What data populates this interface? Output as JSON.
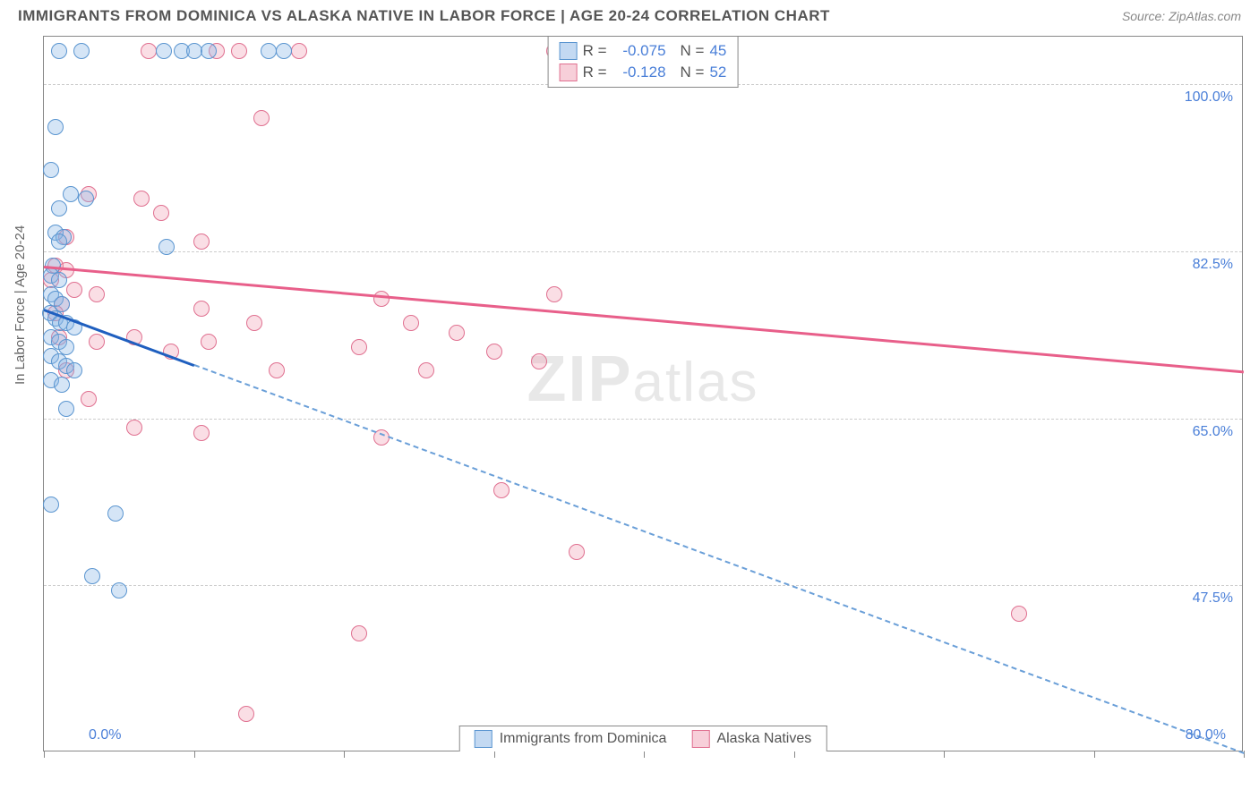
{
  "title": "IMMIGRANTS FROM DOMINICA VS ALASKA NATIVE IN LABOR FORCE | AGE 20-24 CORRELATION CHART",
  "source": "Source: ZipAtlas.com",
  "ylabel": "In Labor Force | Age 20-24",
  "watermark_zip": "ZIP",
  "watermark_atlas": "atlas",
  "chart": {
    "type": "scatter",
    "background_color": "#ffffff",
    "grid_color": "#cccccc",
    "border_color": "#888888",
    "xlim": [
      0,
      80
    ],
    "ylim": [
      30,
      105
    ],
    "xtick_positions": [
      0,
      10,
      20,
      30,
      40,
      50,
      60,
      70,
      80
    ],
    "xtick_labels_shown": {
      "0": "0.0%",
      "80": "80.0%"
    },
    "ytick_positions": [
      47.5,
      65.0,
      82.5,
      100.0
    ],
    "ytick_labels": [
      "47.5%",
      "65.0%",
      "82.5%",
      "100.0%"
    ],
    "label_fontsize": 15,
    "tick_label_color": "#4a7fd8",
    "tick_label_fontsize": 16,
    "marker_radius": 9,
    "series": {
      "blue": {
        "label": "Immigrants from Dominica",
        "fill_color": "rgba(135,180,230,0.35)",
        "stroke_color": "#5a95d0",
        "R": "-0.075",
        "N": "45",
        "regression": {
          "x1": 0,
          "y1": 76.5,
          "x2": 80,
          "y2": 30.0,
          "solid_until_x": 10,
          "solid_color": "#1f5fbf",
          "dash_color": "#6a9fd8",
          "line_width": 3
        },
        "points": [
          [
            1.0,
            103.5
          ],
          [
            2.5,
            103.5
          ],
          [
            8.0,
            103.5
          ],
          [
            9.2,
            103.5
          ],
          [
            10.0,
            103.5
          ],
          [
            11.0,
            103.5
          ],
          [
            15.0,
            103.5
          ],
          [
            16.0,
            103.5
          ],
          [
            0.8,
            95.5
          ],
          [
            0.5,
            91.0
          ],
          [
            1.8,
            88.5
          ],
          [
            2.8,
            88.0
          ],
          [
            1.0,
            87.0
          ],
          [
            0.8,
            84.5
          ],
          [
            1.3,
            84.0
          ],
          [
            1.0,
            83.5
          ],
          [
            8.2,
            83.0
          ],
          [
            0.6,
            81.0
          ],
          [
            0.5,
            80.0
          ],
          [
            1.0,
            79.5
          ],
          [
            0.5,
            78.0
          ],
          [
            0.8,
            77.5
          ],
          [
            1.2,
            77.0
          ],
          [
            0.4,
            76.0
          ],
          [
            0.8,
            75.5
          ],
          [
            1.1,
            75.0
          ],
          [
            1.5,
            75.0
          ],
          [
            2.0,
            74.5
          ],
          [
            0.5,
            73.5
          ],
          [
            1.0,
            73.0
          ],
          [
            1.5,
            72.5
          ],
          [
            0.5,
            71.5
          ],
          [
            1.0,
            71.0
          ],
          [
            1.5,
            70.5
          ],
          [
            2.0,
            70.0
          ],
          [
            0.5,
            69.0
          ],
          [
            1.2,
            68.5
          ],
          [
            1.5,
            66.0
          ],
          [
            0.5,
            56.0
          ],
          [
            4.8,
            55.0
          ],
          [
            3.2,
            48.5
          ],
          [
            5.0,
            47.0
          ]
        ]
      },
      "pink": {
        "label": "Alaska Natives",
        "fill_color": "rgba(240,160,180,0.35)",
        "stroke_color": "#e07090",
        "R": "-0.128",
        "N": "52",
        "regression": {
          "x1": 0,
          "y1": 81.0,
          "x2": 80,
          "y2": 70.0,
          "color": "#e85f8a",
          "line_width": 3
        },
        "points": [
          [
            7.0,
            103.5
          ],
          [
            11.5,
            103.5
          ],
          [
            13.0,
            103.5
          ],
          [
            17.0,
            103.5
          ],
          [
            34.0,
            103.5
          ],
          [
            39.5,
            103.5
          ],
          [
            41.0,
            103.5
          ],
          [
            43.0,
            103.5
          ],
          [
            14.5,
            96.5
          ],
          [
            3.0,
            88.5
          ],
          [
            6.5,
            88.0
          ],
          [
            7.8,
            86.5
          ],
          [
            1.5,
            84.0
          ],
          [
            10.5,
            83.5
          ],
          [
            0.8,
            81.0
          ],
          [
            1.5,
            80.5
          ],
          [
            0.5,
            79.5
          ],
          [
            2.0,
            78.5
          ],
          [
            3.5,
            78.0
          ],
          [
            1.2,
            77.0
          ],
          [
            22.5,
            77.5
          ],
          [
            34.0,
            78.0
          ],
          [
            0.8,
            76.0
          ],
          [
            10.5,
            76.5
          ],
          [
            14.0,
            75.0
          ],
          [
            24.5,
            75.0
          ],
          [
            27.5,
            74.0
          ],
          [
            1.0,
            73.5
          ],
          [
            3.5,
            73.0
          ],
          [
            6.0,
            73.5
          ],
          [
            8.5,
            72.0
          ],
          [
            11.0,
            73.0
          ],
          [
            21.0,
            72.5
          ],
          [
            30.0,
            72.0
          ],
          [
            33.0,
            71.0
          ],
          [
            1.5,
            70.0
          ],
          [
            15.5,
            70.0
          ],
          [
            25.5,
            70.0
          ],
          [
            3.0,
            67.0
          ],
          [
            6.0,
            64.0
          ],
          [
            10.5,
            63.5
          ],
          [
            22.5,
            63.0
          ],
          [
            30.5,
            57.5
          ],
          [
            35.5,
            51.0
          ],
          [
            65.0,
            44.5
          ],
          [
            21.0,
            42.5
          ],
          [
            13.5,
            34.0
          ]
        ]
      }
    }
  },
  "legend_top": {
    "r_label": "R =",
    "n_label": "N ="
  }
}
